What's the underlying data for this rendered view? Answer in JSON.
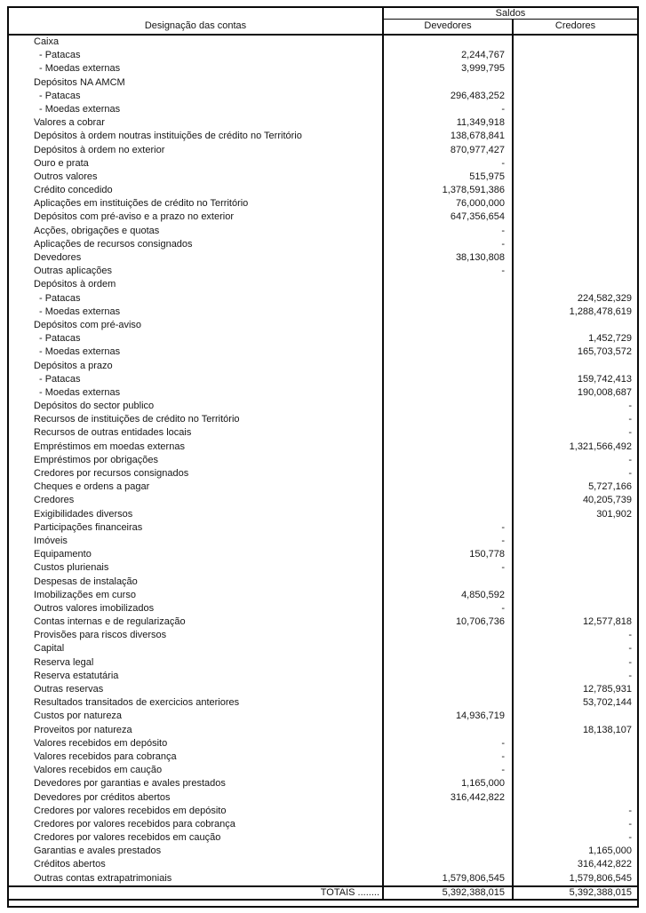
{
  "table": {
    "header": {
      "designacao": "Designação das contas",
      "saldos": "Saldos",
      "devedores": "Devedores",
      "credores": "Credores"
    },
    "rows": [
      {
        "label": "Caixa",
        "indent": false,
        "devedores": "",
        "credores": ""
      },
      {
        "label": "- Patacas",
        "indent": true,
        "devedores": "2,244,767",
        "credores": ""
      },
      {
        "label": "- Moedas externas",
        "indent": true,
        "devedores": "3,999,795",
        "credores": ""
      },
      {
        "label": "Depósitos NA AMCM",
        "indent": false,
        "devedores": "",
        "credores": ""
      },
      {
        "label": "- Patacas",
        "indent": true,
        "devedores": "296,483,252",
        "credores": ""
      },
      {
        "label": "- Moedas externas",
        "indent": true,
        "devedores": "-",
        "credores": ""
      },
      {
        "label": "Valores a cobrar",
        "indent": false,
        "devedores": "11,349,918",
        "credores": ""
      },
      {
        "label": "Depósitos à ordem noutras instituições de crédito no Território",
        "indent": false,
        "devedores": "138,678,841",
        "credores": ""
      },
      {
        "label": "Depósitos à ordem no exterior",
        "indent": false,
        "devedores": "870,977,427",
        "credores": ""
      },
      {
        "label": "Ouro e prata",
        "indent": false,
        "devedores": "-",
        "credores": ""
      },
      {
        "label": "Outros valores",
        "indent": false,
        "devedores": "515,975",
        "credores": ""
      },
      {
        "label": "Crédito concedido",
        "indent": false,
        "devedores": "1,378,591,386",
        "credores": ""
      },
      {
        "label": "Aplicações em instituições de crédito no Território",
        "indent": false,
        "devedores": "76,000,000",
        "credores": ""
      },
      {
        "label": "Depósitos com pré-aviso e a prazo no exterior",
        "indent": false,
        "devedores": "647,356,654",
        "credores": ""
      },
      {
        "label": "Acções, obrigações e quotas",
        "indent": false,
        "devedores": "-",
        "credores": ""
      },
      {
        "label": "Aplicações de recursos consignados",
        "indent": false,
        "devedores": "-",
        "credores": ""
      },
      {
        "label": "Devedores",
        "indent": false,
        "devedores": "38,130,808",
        "credores": ""
      },
      {
        "label": "Outras aplicações",
        "indent": false,
        "devedores": "-",
        "credores": ""
      },
      {
        "label": "Depósitos à ordem",
        "indent": false,
        "devedores": "",
        "credores": ""
      },
      {
        "label": "- Patacas",
        "indent": true,
        "devedores": "",
        "credores": "224,582,329"
      },
      {
        "label": "- Moedas externas",
        "indent": true,
        "devedores": "",
        "credores": "1,288,478,619"
      },
      {
        "label": "Depósitos com pré-aviso",
        "indent": false,
        "devedores": "",
        "credores": ""
      },
      {
        "label": "- Patacas",
        "indent": true,
        "devedores": "",
        "credores": "1,452,729"
      },
      {
        "label": "- Moedas externas",
        "indent": true,
        "devedores": "",
        "credores": "165,703,572"
      },
      {
        "label": "Depósitos a prazo",
        "indent": false,
        "devedores": "",
        "credores": ""
      },
      {
        "label": "- Patacas",
        "indent": true,
        "devedores": "",
        "credores": "159,742,413"
      },
      {
        "label": "- Moedas externas",
        "indent": true,
        "devedores": "",
        "credores": "190,008,687"
      },
      {
        "label": "Depósitos do sector publico",
        "indent": false,
        "devedores": "",
        "credores": "-"
      },
      {
        "label": "Recursos de instituições de crédito no Território",
        "indent": false,
        "devedores": "",
        "credores": "-"
      },
      {
        "label": "Recursos de outras entidades locais",
        "indent": false,
        "devedores": "",
        "credores": "-"
      },
      {
        "label": "Empréstimos em moedas externas",
        "indent": false,
        "devedores": "",
        "credores": "1,321,566,492"
      },
      {
        "label": "Empréstimos por obrigações",
        "indent": false,
        "devedores": "",
        "credores": "-"
      },
      {
        "label": "Credores por recursos consignados",
        "indent": false,
        "devedores": "",
        "credores": "-"
      },
      {
        "label": "Cheques e ordens a pagar",
        "indent": false,
        "devedores": "",
        "credores": "5,727,166"
      },
      {
        "label": "Credores",
        "indent": false,
        "devedores": "",
        "credores": "40,205,739"
      },
      {
        "label": "Exigibilidades diversos",
        "indent": false,
        "devedores": "",
        "credores": "301,902"
      },
      {
        "label": "Participações financeiras",
        "indent": false,
        "devedores": "-",
        "credores": ""
      },
      {
        "label": "Imóveis",
        "indent": false,
        "devedores": "-",
        "credores": ""
      },
      {
        "label": "Equipamento",
        "indent": false,
        "devedores": "150,778",
        "credores": ""
      },
      {
        "label": "Custos plurienais",
        "indent": false,
        "devedores": "-",
        "credores": ""
      },
      {
        "label": "Despesas de instalação",
        "indent": false,
        "devedores": "",
        "credores": ""
      },
      {
        "label": "Imobilizações em curso",
        "indent": false,
        "devedores": "4,850,592",
        "credores": ""
      },
      {
        "label": "Outros valores imobilizados",
        "indent": false,
        "devedores": "-",
        "credores": ""
      },
      {
        "label": "Contas internas e de regularização",
        "indent": false,
        "devedores": "10,706,736",
        "credores": "12,577,818"
      },
      {
        "label": "Provisões para riscos diversos",
        "indent": false,
        "devedores": "",
        "credores": "-"
      },
      {
        "label": "Capital",
        "indent": false,
        "devedores": "",
        "credores": "-"
      },
      {
        "label": "Reserva legal",
        "indent": false,
        "devedores": "",
        "credores": "-"
      },
      {
        "label": "Reserva estatutária",
        "indent": false,
        "devedores": "",
        "credores": "-"
      },
      {
        "label": "Outras reservas",
        "indent": false,
        "devedores": "",
        "credores": "12,785,931"
      },
      {
        "label": "Resultados transitados de exercicios anteriores",
        "indent": false,
        "devedores": "",
        "credores": "53,702,144"
      },
      {
        "label": "Custos por natureza",
        "indent": false,
        "devedores": "14,936,719",
        "credores": ""
      },
      {
        "label": "Proveitos por natureza",
        "indent": false,
        "devedores": "",
        "credores": "18,138,107"
      },
      {
        "label": "Valores recebidos em depósito",
        "indent": false,
        "devedores": "-",
        "credores": ""
      },
      {
        "label": "Valores recebidos para cobrança",
        "indent": false,
        "devedores": "-",
        "credores": ""
      },
      {
        "label": "Valores recebidos em caução",
        "indent": false,
        "devedores": "-",
        "credores": ""
      },
      {
        "label": "Devedores por garantias e avales prestados",
        "indent": false,
        "devedores": "1,165,000",
        "credores": ""
      },
      {
        "label": "Devedores por créditos abertos",
        "indent": false,
        "devedores": "316,442,822",
        "credores": ""
      },
      {
        "label": "Credores por valores recebidos em depósito",
        "indent": false,
        "devedores": "",
        "credores": "-"
      },
      {
        "label": "Credores por valores recebidos para cobrança",
        "indent": false,
        "devedores": "",
        "credores": "-"
      },
      {
        "label": "Credores por valores recebidos em caução",
        "indent": false,
        "devedores": "",
        "credores": "-"
      },
      {
        "label": "Garantias e avales prestados",
        "indent": false,
        "devedores": "",
        "credores": "1,165,000"
      },
      {
        "label": "Créditos abertos",
        "indent": false,
        "devedores": "",
        "credores": "316,442,822"
      },
      {
        "label": "Outras contas extrapatrimoniais",
        "indent": false,
        "devedores": "1,579,806,545",
        "credores": "1,579,806,545"
      }
    ],
    "totals": {
      "label": "TOTAIS ........",
      "devedores": "5,392,388,015",
      "credores": "5,392,388,015"
    }
  }
}
